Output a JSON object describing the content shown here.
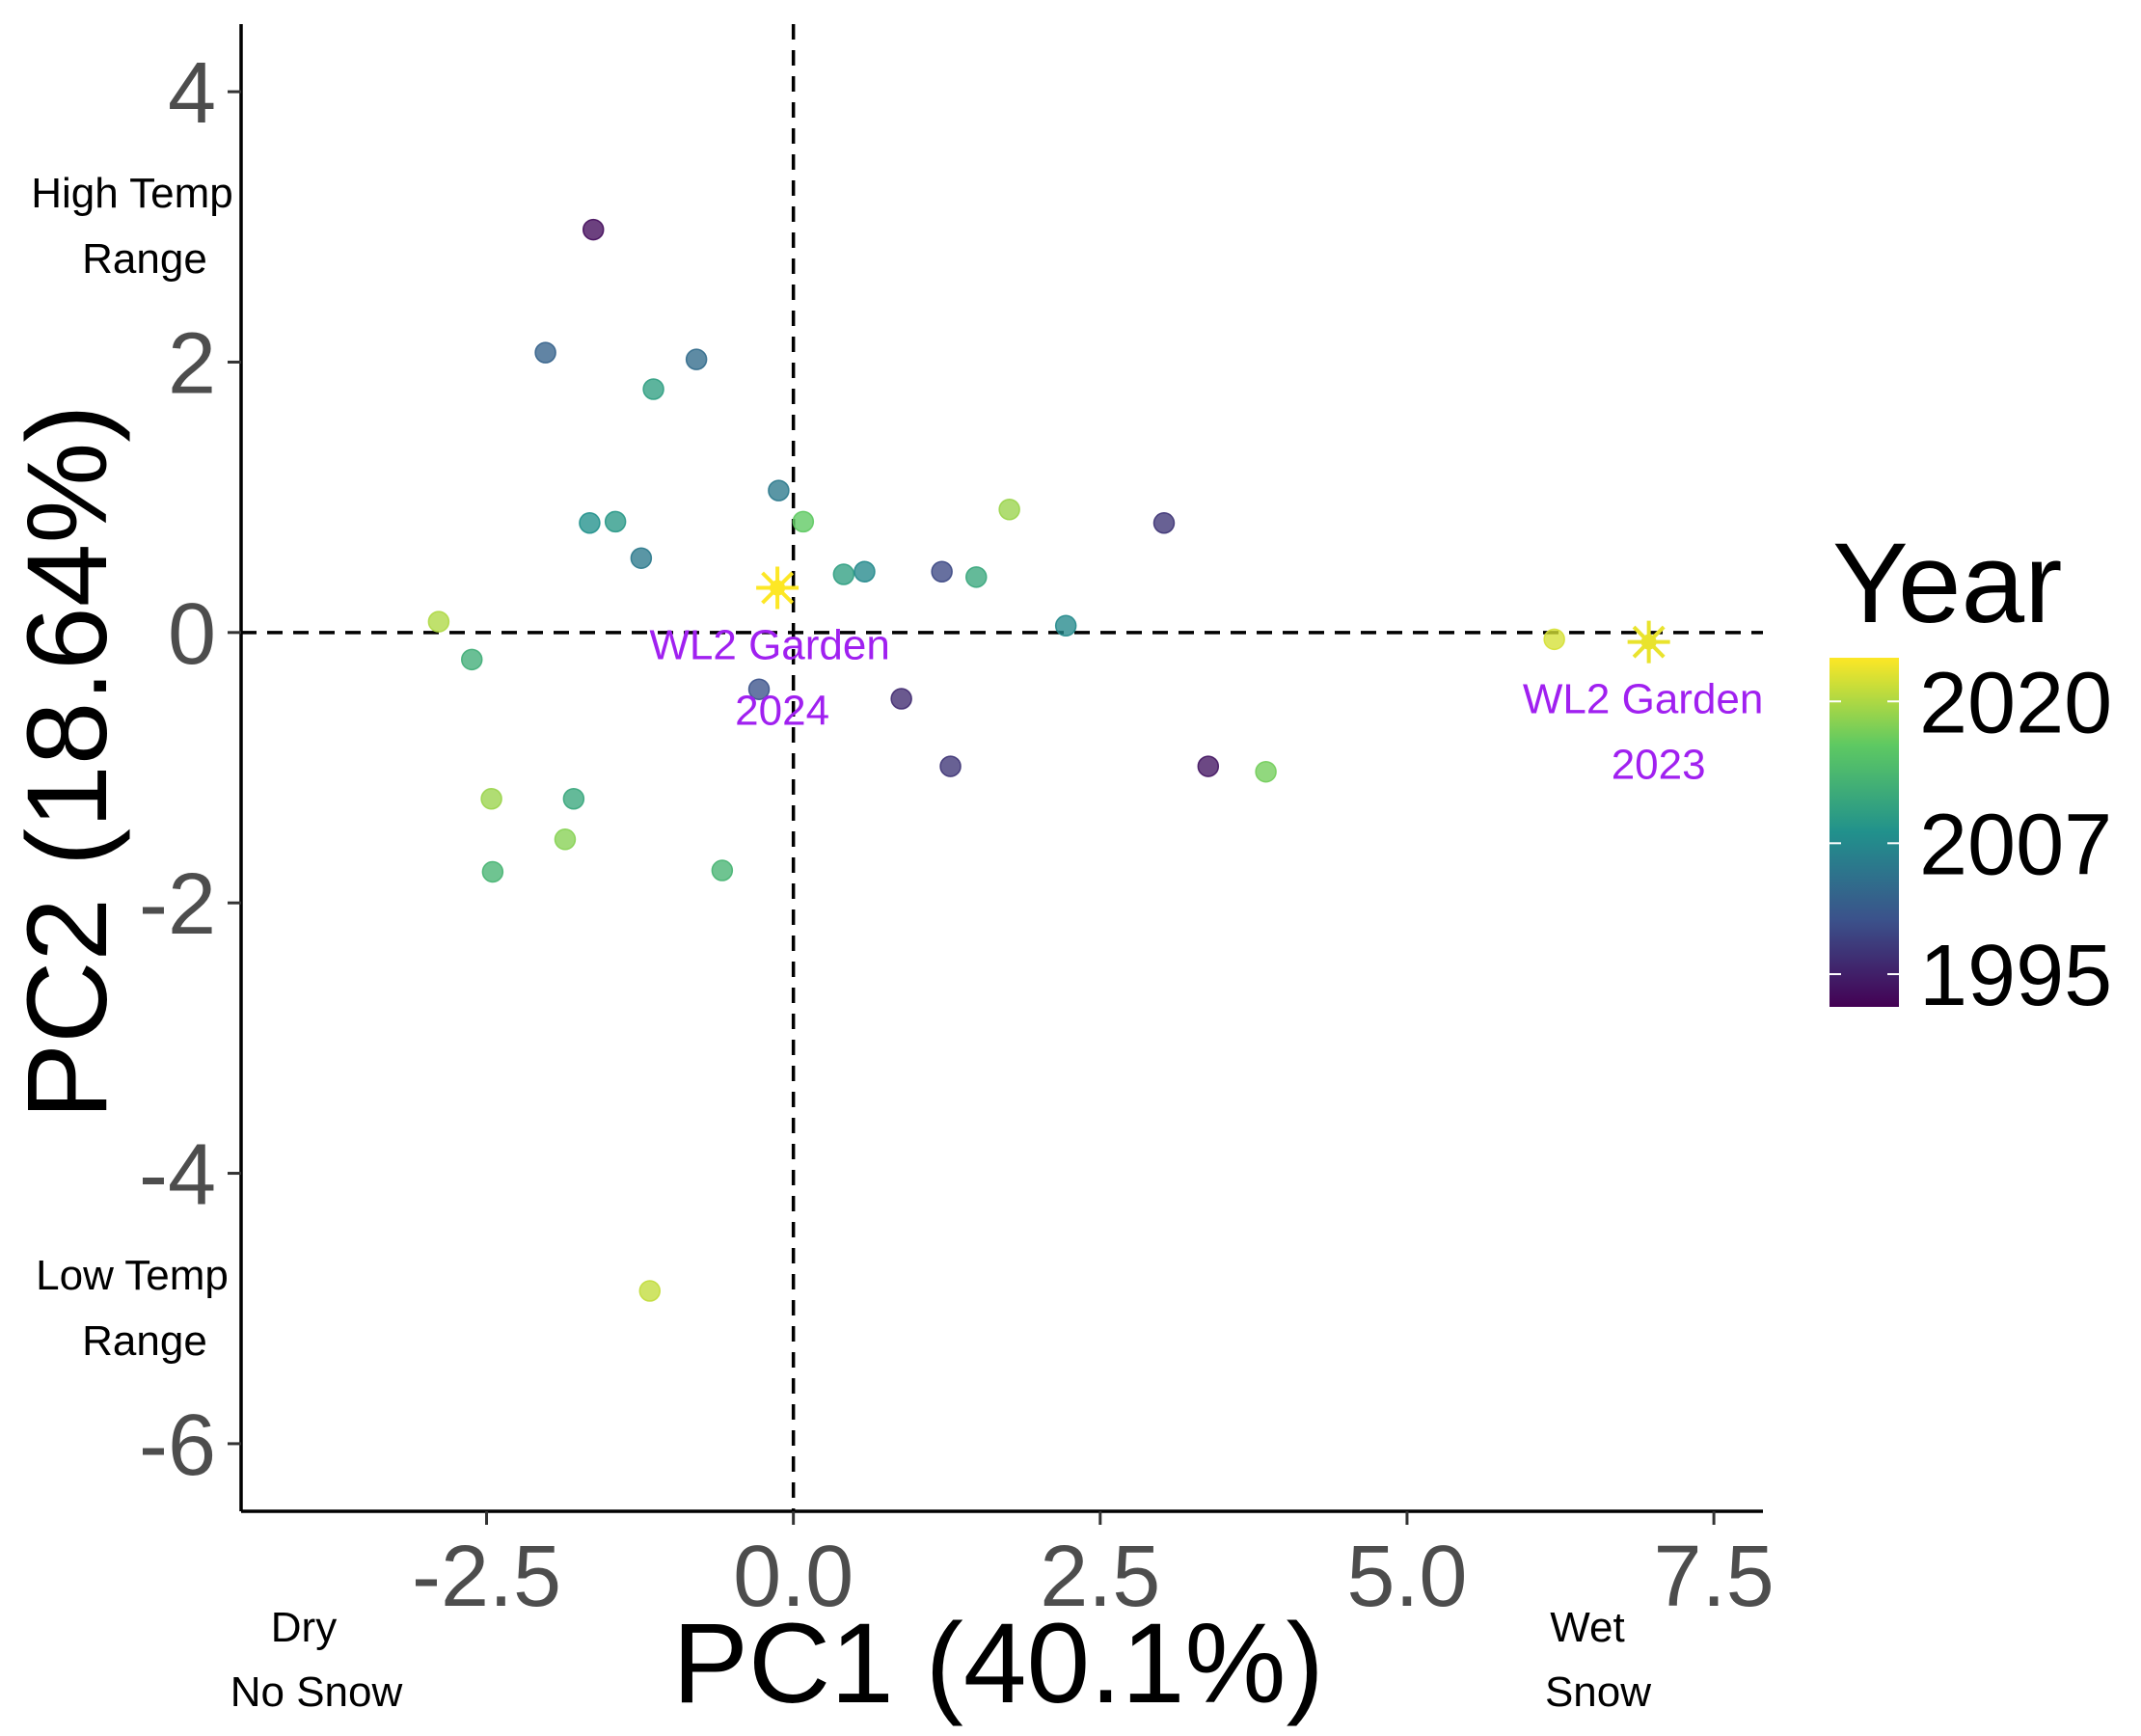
{
  "chart_data": {
    "type": "scatter",
    "xlabel": "PC1 (40.1%)",
    "ylabel": "PC2 (18.64%)",
    "xlim": [
      -4.5,
      7.9
    ],
    "ylim": [
      -6.5,
      4.5
    ],
    "xticks": [
      -2.5,
      0.0,
      2.5,
      5.0,
      7.5
    ],
    "xtick_labels": [
      "-2.5",
      "0.0",
      "2.5",
      "5.0",
      "7.5"
    ],
    "yticks": [
      4,
      2,
      0,
      -2,
      -4,
      -6
    ],
    "ytick_labels": [
      "4",
      "2",
      "0",
      "-2",
      "-4",
      "-6"
    ],
    "grid": false,
    "reference_lines": {
      "x": 0,
      "y": 0,
      "style": "dashed"
    },
    "legend": {
      "title": "Year",
      "type": "colorbar",
      "placement": "right",
      "min": 1992,
      "max": 2024,
      "labels": [
        "2020",
        "2007",
        "1995"
      ],
      "label_values": [
        2020,
        2007,
        1995
      ],
      "colors": [
        "#440154",
        "#3b528b",
        "#21918c",
        "#5ec962",
        "#fde725"
      ]
    },
    "annotations": {
      "x_low": [
        "Dry",
        "No Snow"
      ],
      "x_high": [
        "Wet",
        "Snow"
      ],
      "y_high": [
        "High Temp",
        "Range"
      ],
      "y_low": [
        "Low Temp",
        "Range"
      ]
    },
    "points": [
      {
        "x": -1.63,
        "y": 2.98,
        "year": 1993
      },
      {
        "x": -2.02,
        "y": 2.07,
        "year": 2002
      },
      {
        "x": -0.79,
        "y": 2.02,
        "year": 2003
      },
      {
        "x": -1.14,
        "y": 1.8,
        "year": 2010
      },
      {
        "x": -0.12,
        "y": 1.05,
        "year": 2005
      },
      {
        "x": 0.08,
        "y": 0.82,
        "year": 2016
      },
      {
        "x": 1.76,
        "y": 0.91,
        "year": 2019
      },
      {
        "x": 3.02,
        "y": 0.81,
        "year": 1997
      },
      {
        "x": -1.66,
        "y": 0.81,
        "year": 2008
      },
      {
        "x": -1.45,
        "y": 0.82,
        "year": 2009
      },
      {
        "x": -1.24,
        "y": 0.55,
        "year": 2005
      },
      {
        "x": 0.41,
        "y": 0.43,
        "year": 2010
      },
      {
        "x": 0.58,
        "y": 0.45,
        "year": 2007
      },
      {
        "x": 1.21,
        "y": 0.45,
        "year": 1999
      },
      {
        "x": 1.49,
        "y": 0.41,
        "year": 2011
      },
      {
        "x": 2.22,
        "y": 0.05,
        "year": 2007
      },
      {
        "x": -2.89,
        "y": 0.08,
        "year": 2020
      },
      {
        "x": -2.62,
        "y": -0.2,
        "year": 2012
      },
      {
        "x": 6.2,
        "y": -0.05,
        "year": 2022
      },
      {
        "x": -0.28,
        "y": -0.42,
        "year": 2000
      },
      {
        "x": 0.88,
        "y": -0.49,
        "year": 1996
      },
      {
        "x": 1.28,
        "y": -0.99,
        "year": 1997
      },
      {
        "x": 3.38,
        "y": -0.99,
        "year": 1994
      },
      {
        "x": 3.85,
        "y": -1.03,
        "year": 2017
      },
      {
        "x": -2.46,
        "y": -1.23,
        "year": 2019
      },
      {
        "x": -1.79,
        "y": -1.23,
        "year": 2011
      },
      {
        "x": -1.86,
        "y": -1.53,
        "year": 2018
      },
      {
        "x": -2.45,
        "y": -1.77,
        "year": 2013
      },
      {
        "x": -0.58,
        "y": -1.76,
        "year": 2013
      },
      {
        "x": -1.17,
        "y": -4.87,
        "year": 2021
      }
    ],
    "garden_sites": [
      {
        "x": -0.13,
        "y": 0.33,
        "year": 2024,
        "label": [
          "WL2 Garden",
          "2024"
        ]
      },
      {
        "x": 6.97,
        "y": -0.07,
        "year": 2023,
        "label": [
          "WL2 Garden",
          "2023"
        ]
      }
    ],
    "site_label_color": "#a020f0"
  }
}
